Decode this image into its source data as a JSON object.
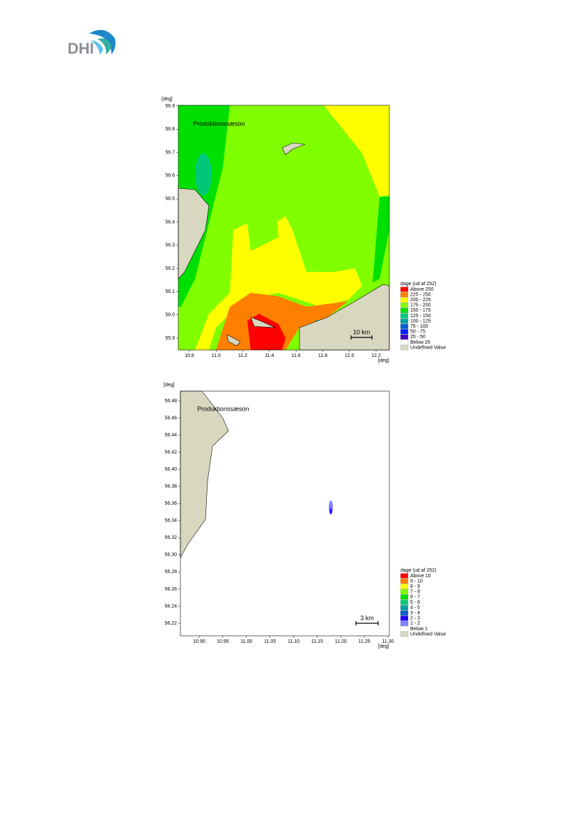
{
  "logo": "DHI",
  "maps": [
    {
      "title": "Produktionssæson",
      "ylabel": "[deg]",
      "xlabel": "[deg]",
      "yticks": [
        "56.9",
        "56.8",
        "56.7",
        "56.6",
        "56.5",
        "56.4",
        "56.3",
        "56.2",
        "56.1",
        "56.0",
        "55.9"
      ],
      "xticks": [
        "10.8",
        "11.0",
        "11.2",
        "11.4",
        "11.6",
        "11.8",
        "12.0",
        "12.2"
      ],
      "scalebar": "10 km",
      "legend": {
        "title": "dage (ud af 252)",
        "items": [
          {
            "label": "Above 250",
            "color": "#ff0000"
          },
          {
            "label": "225 - 250",
            "color": "#ff8000"
          },
          {
            "label": "200 - 225",
            "color": "#ffff00"
          },
          {
            "label": "175 - 200",
            "color": "#80ff00"
          },
          {
            "label": "150 - 175",
            "color": "#00e000"
          },
          {
            "label": "125 - 150",
            "color": "#00c878"
          },
          {
            "label": "100 - 125",
            "color": "#00a0a0"
          },
          {
            "label": "75 - 100",
            "color": "#0060d0"
          },
          {
            "label": "50 - 75",
            "color": "#0020ff"
          },
          {
            "label": "25 - 50",
            "color": "#4000c0"
          },
          {
            "label": "Below 25",
            "color": "#ffffff"
          },
          {
            "label": "Undefined Value",
            "color": "#d8d8c0"
          }
        ]
      }
    },
    {
      "title": "Produktionssæson",
      "ylabel": "[deg]",
      "xlabel": "[deg]",
      "yticks": [
        "56.48",
        "56.46",
        "56.44",
        "56.42",
        "56.40",
        "56.38",
        "56.36",
        "56.34",
        "56.32",
        "56.30",
        "56.28",
        "56.26",
        "56.24",
        "56.22"
      ],
      "xticks": [
        "10.90",
        "10.95",
        "11.00",
        "11.05",
        "11.10",
        "11.15",
        "11.20",
        "11.25",
        "11.30"
      ],
      "scalebar": "3 km",
      "legend": {
        "title": "dage (ud af 252)",
        "items": [
          {
            "label": "Above 10",
            "color": "#ff0000"
          },
          {
            "label": "9 - 10",
            "color": "#ff8000"
          },
          {
            "label": "8 - 9",
            "color": "#ffff00"
          },
          {
            "label": "7 - 8",
            "color": "#80ff00"
          },
          {
            "label": "6 - 7",
            "color": "#00e000"
          },
          {
            "label": "5 - 6",
            "color": "#00c878"
          },
          {
            "label": "4 - 5",
            "color": "#00a0a0"
          },
          {
            "label": "3 - 4",
            "color": "#0060d0"
          },
          {
            "label": "2 - 3",
            "color": "#2000ff"
          },
          {
            "label": "1 - 2",
            "color": "#8080ff"
          },
          {
            "label": "Below 1",
            "color": "#ffffff"
          },
          {
            "label": "Undefined Value",
            "color": "#d8d8c0"
          }
        ]
      }
    }
  ]
}
